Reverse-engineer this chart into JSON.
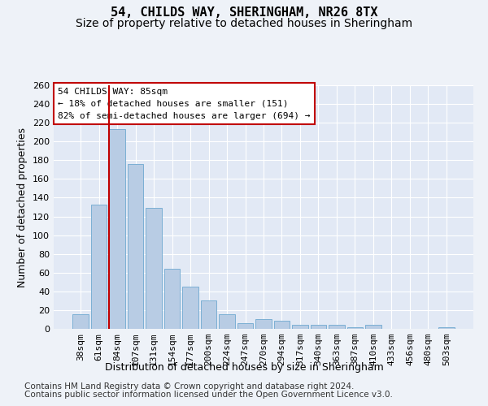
{
  "title": "54, CHILDS WAY, SHERINGHAM, NR26 8TX",
  "subtitle": "Size of property relative to detached houses in Sheringham",
  "xlabel": "Distribution of detached houses by size in Sheringham",
  "ylabel": "Number of detached properties",
  "categories": [
    "38sqm",
    "61sqm",
    "84sqm",
    "107sqm",
    "131sqm",
    "154sqm",
    "177sqm",
    "200sqm",
    "224sqm",
    "247sqm",
    "270sqm",
    "294sqm",
    "317sqm",
    "340sqm",
    "363sqm",
    "387sqm",
    "410sqm",
    "433sqm",
    "456sqm",
    "480sqm",
    "503sqm"
  ],
  "values": [
    16,
    133,
    213,
    176,
    129,
    64,
    45,
    30,
    16,
    6,
    10,
    9,
    4,
    4,
    4,
    2,
    4,
    0,
    0,
    0,
    2
  ],
  "bar_color": "#b8cce4",
  "bar_edge_color": "#7bafd4",
  "highlight_bar_index": 2,
  "highlight_line_color": "#c00000",
  "annotation_text": "54 CHILDS WAY: 85sqm\n← 18% of detached houses are smaller (151)\n82% of semi-detached houses are larger (694) →",
  "annotation_box_color": "white",
  "annotation_box_edge": "#c00000",
  "ylim": [
    0,
    260
  ],
  "yticks": [
    0,
    20,
    40,
    60,
    80,
    100,
    120,
    140,
    160,
    180,
    200,
    220,
    240,
    260
  ],
  "footer1": "Contains HM Land Registry data © Crown copyright and database right 2024.",
  "footer2": "Contains public sector information licensed under the Open Government Licence v3.0.",
  "bg_color": "#eef2f8",
  "plot_bg_color": "#e2e9f5",
  "grid_color": "white",
  "title_fontsize": 11,
  "subtitle_fontsize": 10,
  "axis_label_fontsize": 9,
  "tick_fontsize": 8,
  "footer_fontsize": 7.5
}
